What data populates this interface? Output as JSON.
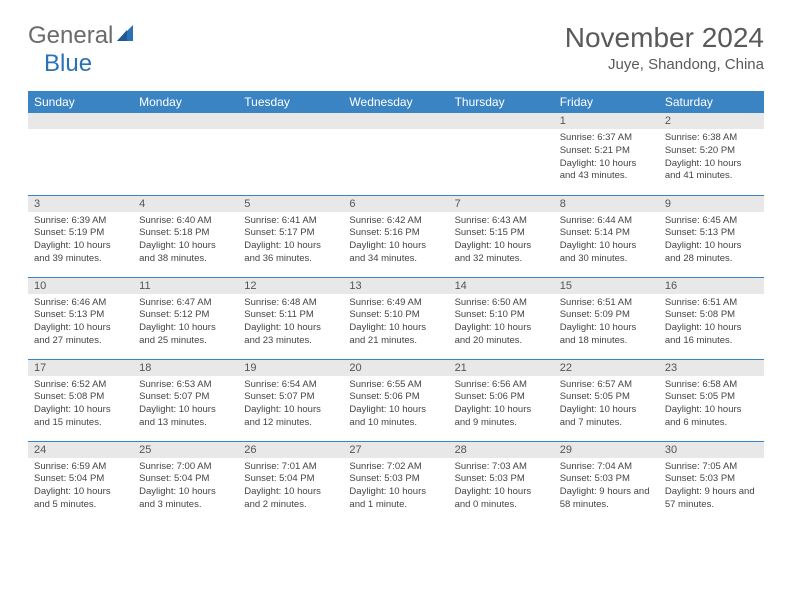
{
  "logo": {
    "text1": "General",
    "text2": "Blue"
  },
  "title": "November 2024",
  "location": "Juye, Shandong, China",
  "colors": {
    "header_bg": "#3a84c4",
    "header_fg": "#ffffff",
    "daynum_bg": "#e8e8e8",
    "border": "#3a84c4",
    "logo_gray": "#6b6b6b",
    "logo_blue": "#2a72b5",
    "text": "#444444"
  },
  "day_names": [
    "Sunday",
    "Monday",
    "Tuesday",
    "Wednesday",
    "Thursday",
    "Friday",
    "Saturday"
  ],
  "weeks": [
    [
      {
        "n": "",
        "t": ""
      },
      {
        "n": "",
        "t": ""
      },
      {
        "n": "",
        "t": ""
      },
      {
        "n": "",
        "t": ""
      },
      {
        "n": "",
        "t": ""
      },
      {
        "n": "1",
        "t": "Sunrise: 6:37 AM\nSunset: 5:21 PM\nDaylight: 10 hours and 43 minutes."
      },
      {
        "n": "2",
        "t": "Sunrise: 6:38 AM\nSunset: 5:20 PM\nDaylight: 10 hours and 41 minutes."
      }
    ],
    [
      {
        "n": "3",
        "t": "Sunrise: 6:39 AM\nSunset: 5:19 PM\nDaylight: 10 hours and 39 minutes."
      },
      {
        "n": "4",
        "t": "Sunrise: 6:40 AM\nSunset: 5:18 PM\nDaylight: 10 hours and 38 minutes."
      },
      {
        "n": "5",
        "t": "Sunrise: 6:41 AM\nSunset: 5:17 PM\nDaylight: 10 hours and 36 minutes."
      },
      {
        "n": "6",
        "t": "Sunrise: 6:42 AM\nSunset: 5:16 PM\nDaylight: 10 hours and 34 minutes."
      },
      {
        "n": "7",
        "t": "Sunrise: 6:43 AM\nSunset: 5:15 PM\nDaylight: 10 hours and 32 minutes."
      },
      {
        "n": "8",
        "t": "Sunrise: 6:44 AM\nSunset: 5:14 PM\nDaylight: 10 hours and 30 minutes."
      },
      {
        "n": "9",
        "t": "Sunrise: 6:45 AM\nSunset: 5:13 PM\nDaylight: 10 hours and 28 minutes."
      }
    ],
    [
      {
        "n": "10",
        "t": "Sunrise: 6:46 AM\nSunset: 5:13 PM\nDaylight: 10 hours and 27 minutes."
      },
      {
        "n": "11",
        "t": "Sunrise: 6:47 AM\nSunset: 5:12 PM\nDaylight: 10 hours and 25 minutes."
      },
      {
        "n": "12",
        "t": "Sunrise: 6:48 AM\nSunset: 5:11 PM\nDaylight: 10 hours and 23 minutes."
      },
      {
        "n": "13",
        "t": "Sunrise: 6:49 AM\nSunset: 5:10 PM\nDaylight: 10 hours and 21 minutes."
      },
      {
        "n": "14",
        "t": "Sunrise: 6:50 AM\nSunset: 5:10 PM\nDaylight: 10 hours and 20 minutes."
      },
      {
        "n": "15",
        "t": "Sunrise: 6:51 AM\nSunset: 5:09 PM\nDaylight: 10 hours and 18 minutes."
      },
      {
        "n": "16",
        "t": "Sunrise: 6:51 AM\nSunset: 5:08 PM\nDaylight: 10 hours and 16 minutes."
      }
    ],
    [
      {
        "n": "17",
        "t": "Sunrise: 6:52 AM\nSunset: 5:08 PM\nDaylight: 10 hours and 15 minutes."
      },
      {
        "n": "18",
        "t": "Sunrise: 6:53 AM\nSunset: 5:07 PM\nDaylight: 10 hours and 13 minutes."
      },
      {
        "n": "19",
        "t": "Sunrise: 6:54 AM\nSunset: 5:07 PM\nDaylight: 10 hours and 12 minutes."
      },
      {
        "n": "20",
        "t": "Sunrise: 6:55 AM\nSunset: 5:06 PM\nDaylight: 10 hours and 10 minutes."
      },
      {
        "n": "21",
        "t": "Sunrise: 6:56 AM\nSunset: 5:06 PM\nDaylight: 10 hours and 9 minutes."
      },
      {
        "n": "22",
        "t": "Sunrise: 6:57 AM\nSunset: 5:05 PM\nDaylight: 10 hours and 7 minutes."
      },
      {
        "n": "23",
        "t": "Sunrise: 6:58 AM\nSunset: 5:05 PM\nDaylight: 10 hours and 6 minutes."
      }
    ],
    [
      {
        "n": "24",
        "t": "Sunrise: 6:59 AM\nSunset: 5:04 PM\nDaylight: 10 hours and 5 minutes."
      },
      {
        "n": "25",
        "t": "Sunrise: 7:00 AM\nSunset: 5:04 PM\nDaylight: 10 hours and 3 minutes."
      },
      {
        "n": "26",
        "t": "Sunrise: 7:01 AM\nSunset: 5:04 PM\nDaylight: 10 hours and 2 minutes."
      },
      {
        "n": "27",
        "t": "Sunrise: 7:02 AM\nSunset: 5:03 PM\nDaylight: 10 hours and 1 minute."
      },
      {
        "n": "28",
        "t": "Sunrise: 7:03 AM\nSunset: 5:03 PM\nDaylight: 10 hours and 0 minutes."
      },
      {
        "n": "29",
        "t": "Sunrise: 7:04 AM\nSunset: 5:03 PM\nDaylight: 9 hours and 58 minutes."
      },
      {
        "n": "30",
        "t": "Sunrise: 7:05 AM\nSunset: 5:03 PM\nDaylight: 9 hours and 57 minutes."
      }
    ]
  ]
}
